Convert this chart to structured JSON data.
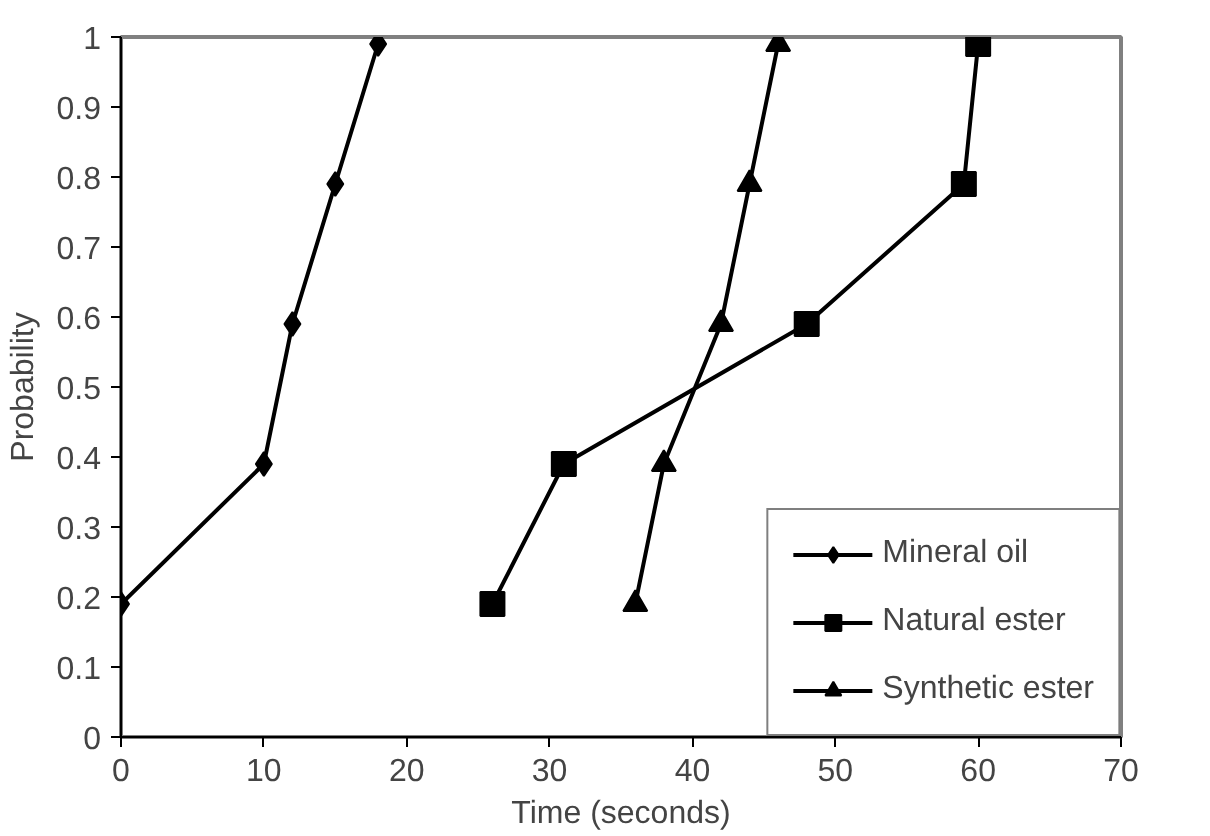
{
  "chart_data": {
    "type": "line",
    "xlabel": "Time (seconds)",
    "ylabel": "Probability",
    "xlim": [
      0,
      70
    ],
    "ylim": [
      0,
      1
    ],
    "xticks": [
      0,
      10,
      20,
      30,
      40,
      50,
      60,
      70
    ],
    "yticks": [
      0,
      0.1,
      0.2,
      0.3,
      0.4,
      0.5,
      0.6,
      0.7,
      0.8,
      0.9,
      1
    ],
    "grid": false,
    "legend": "bottom right",
    "line_style": "solid",
    "series": [
      {
        "name": "Mineral oil",
        "color": "#000000",
        "marker": "diamond",
        "x": [
          0,
          10,
          12,
          15,
          18
        ],
        "values": [
          0.19,
          0.39,
          0.59,
          0.79,
          0.99
        ]
      },
      {
        "name": "Natural ester",
        "color": "#000000",
        "marker": "square",
        "x": [
          26,
          31,
          48,
          59,
          60
        ],
        "values": [
          0.19,
          0.39,
          0.59,
          0.79,
          0.99
        ]
      },
      {
        "name": "Synthetic ester",
        "color": "#000000",
        "marker": "triangle",
        "x": [
          36,
          38,
          42,
          44,
          46
        ],
        "values": [
          0.19,
          0.39,
          0.59,
          0.79,
          0.99
        ]
      }
    ]
  }
}
